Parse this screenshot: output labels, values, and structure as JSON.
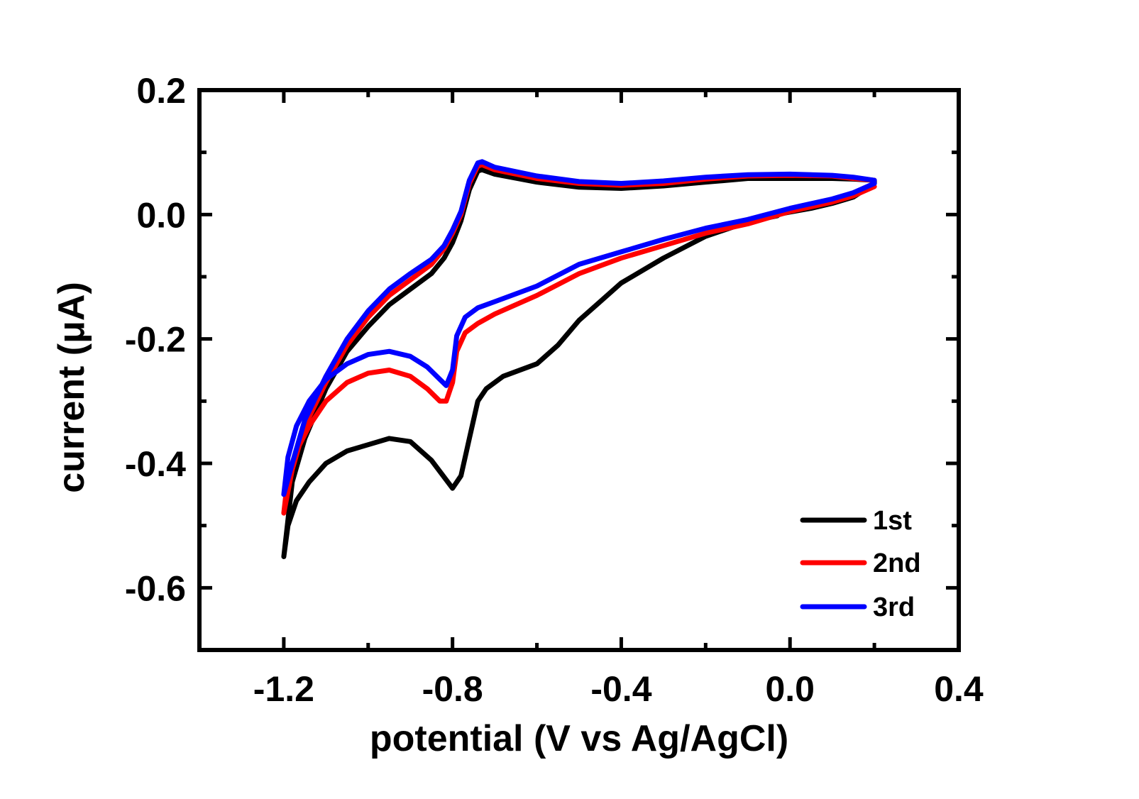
{
  "chart_data": {
    "type": "line",
    "title": "",
    "xlabel": "potential (V vs Ag/AgCl)",
    "ylabel": "current (μA)",
    "xlim": [
      -1.4,
      0.4
    ],
    "ylim": [
      -0.7,
      0.2
    ],
    "xticks": [
      -1.2,
      -0.8,
      -0.4,
      0.0,
      0.4
    ],
    "xtick_labels": [
      "-1.2",
      "-0.8",
      "-0.4",
      "0.0",
      "0.4"
    ],
    "xminor": [
      -1.0,
      -0.6,
      -0.2,
      0.2
    ],
    "yticks": [
      0.2,
      0.0,
      -0.2,
      -0.4,
      -0.6
    ],
    "ytick_labels": [
      "0.2",
      "0.0",
      "-0.2",
      "-0.4",
      "-0.6"
    ],
    "yminor": [
      0.1,
      -0.1,
      -0.3,
      -0.5
    ],
    "grid": false,
    "legend_position": "bottom-right",
    "series": [
      {
        "name": "1st",
        "color": "#000000",
        "x": [
          -0.03,
          0.0,
          0.05,
          0.1,
          0.15,
          0.2,
          0.2,
          0.15,
          0.1,
          0.0,
          -0.1,
          -0.2,
          -0.3,
          -0.4,
          -0.5,
          -0.6,
          -0.7,
          -0.73,
          -0.74,
          -0.76,
          -0.78,
          -0.8,
          -0.82,
          -0.85,
          -0.9,
          -0.95,
          -1.0,
          -1.05,
          -1.1,
          -1.15,
          -1.18,
          -1.2,
          -1.2,
          -1.19,
          -1.17,
          -1.14,
          -1.1,
          -1.05,
          -1.0,
          -0.95,
          -0.9,
          -0.85,
          -0.8,
          -0.78,
          -0.76,
          -0.74,
          -0.72,
          -0.68,
          -0.6,
          -0.55,
          -0.5,
          -0.45,
          -0.4,
          -0.3,
          -0.2,
          -0.1,
          -0.03
        ],
        "y": [
          0.0,
          0.004,
          0.01,
          0.018,
          0.028,
          0.05,
          0.055,
          0.057,
          0.058,
          0.058,
          0.058,
          0.052,
          0.046,
          0.042,
          0.044,
          0.052,
          0.065,
          0.072,
          0.07,
          0.04,
          -0.01,
          -0.045,
          -0.07,
          -0.095,
          -0.12,
          -0.145,
          -0.18,
          -0.22,
          -0.28,
          -0.36,
          -0.43,
          -0.55,
          -0.55,
          -0.5,
          -0.46,
          -0.43,
          -0.4,
          -0.38,
          -0.37,
          -0.36,
          -0.365,
          -0.395,
          -0.44,
          -0.42,
          -0.36,
          -0.3,
          -0.28,
          -0.26,
          -0.24,
          -0.21,
          -0.17,
          -0.14,
          -0.11,
          -0.07,
          -0.035,
          -0.012,
          -0.002
        ]
      },
      {
        "name": "2nd",
        "color": "#ff0000",
        "x": [
          0.2,
          0.15,
          0.1,
          0.0,
          -0.1,
          -0.2,
          -0.3,
          -0.4,
          -0.5,
          -0.6,
          -0.7,
          -0.73,
          -0.74,
          -0.76,
          -0.78,
          -0.8,
          -0.82,
          -0.85,
          -0.9,
          -0.95,
          -1.0,
          -1.05,
          -1.1,
          -1.15,
          -1.18,
          -1.2,
          -1.2,
          -1.19,
          -1.17,
          -1.14,
          -1.1,
          -1.05,
          -1.0,
          -0.95,
          -0.9,
          -0.86,
          -0.83,
          -0.815,
          -0.8,
          -0.79,
          -0.77,
          -0.74,
          -0.7,
          -0.6,
          -0.5,
          -0.4,
          -0.3,
          -0.2,
          -0.1,
          0.0,
          0.1,
          0.15,
          0.2
        ],
        "y": [
          0.055,
          0.058,
          0.062,
          0.063,
          0.062,
          0.057,
          0.05,
          0.047,
          0.05,
          0.058,
          0.072,
          0.08,
          0.078,
          0.05,
          0.0,
          -0.03,
          -0.055,
          -0.08,
          -0.105,
          -0.13,
          -0.165,
          -0.21,
          -0.27,
          -0.34,
          -0.41,
          -0.48,
          -0.48,
          -0.42,
          -0.38,
          -0.34,
          -0.3,
          -0.27,
          -0.255,
          -0.25,
          -0.26,
          -0.28,
          -0.3,
          -0.3,
          -0.27,
          -0.22,
          -0.19,
          -0.175,
          -0.16,
          -0.13,
          -0.095,
          -0.07,
          -0.05,
          -0.03,
          -0.015,
          0.005,
          0.02,
          0.03,
          0.045
        ]
      },
      {
        "name": "3rd",
        "color": "#0000ff",
        "x": [
          0.2,
          0.15,
          0.1,
          0.0,
          -0.1,
          -0.2,
          -0.3,
          -0.4,
          -0.5,
          -0.6,
          -0.7,
          -0.73,
          -0.74,
          -0.76,
          -0.78,
          -0.8,
          -0.82,
          -0.85,
          -0.9,
          -0.95,
          -1.0,
          -1.05,
          -1.1,
          -1.15,
          -1.18,
          -1.2,
          -1.2,
          -1.19,
          -1.17,
          -1.14,
          -1.1,
          -1.05,
          -1.0,
          -0.95,
          -0.9,
          -0.86,
          -0.83,
          -0.815,
          -0.8,
          -0.79,
          -0.77,
          -0.74,
          -0.7,
          -0.6,
          -0.5,
          -0.4,
          -0.3,
          -0.2,
          -0.1,
          0.0,
          0.1,
          0.15,
          0.2
        ],
        "y": [
          0.055,
          0.06,
          0.063,
          0.065,
          0.064,
          0.06,
          0.054,
          0.05,
          0.053,
          0.062,
          0.076,
          0.085,
          0.083,
          0.055,
          0.005,
          -0.025,
          -0.05,
          -0.072,
          -0.095,
          -0.12,
          -0.155,
          -0.2,
          -0.26,
          -0.33,
          -0.4,
          -0.45,
          -0.45,
          -0.39,
          -0.34,
          -0.3,
          -0.265,
          -0.24,
          -0.225,
          -0.22,
          -0.228,
          -0.245,
          -0.265,
          -0.275,
          -0.25,
          -0.195,
          -0.165,
          -0.15,
          -0.14,
          -0.115,
          -0.08,
          -0.06,
          -0.04,
          -0.022,
          -0.008,
          0.01,
          0.025,
          0.035,
          0.05
        ]
      }
    ]
  }
}
